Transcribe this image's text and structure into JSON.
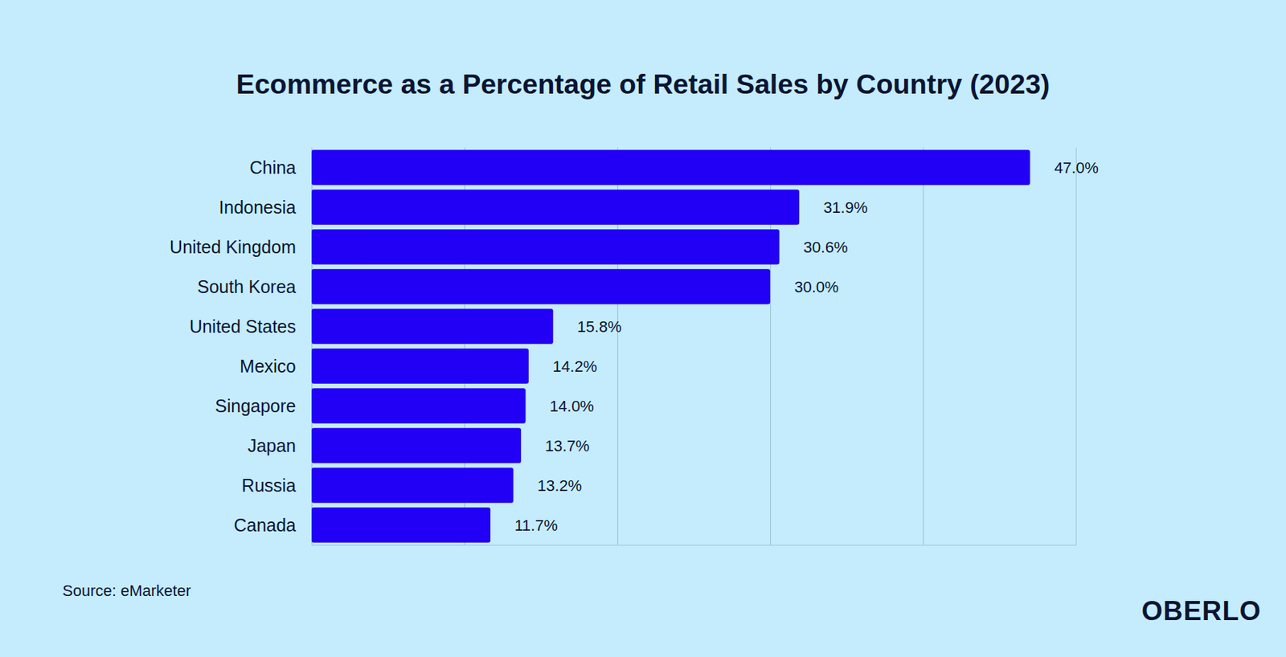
{
  "chart_data": {
    "type": "bar",
    "orientation": "horizontal",
    "title": "Ecommerce as a Percentage of Retail Sales by Country (2023)",
    "categories": [
      "China",
      "Indonesia",
      "United Kingdom",
      "South Korea",
      "United States",
      "Mexico",
      "Singapore",
      "Japan",
      "Russia",
      "Canada"
    ],
    "values": [
      47,
      31.9,
      30.6,
      30,
      15.8,
      14.2,
      14,
      13.7,
      13.2,
      11.7
    ],
    "value_labels": [
      "47.0%",
      "31.9%",
      "30.6%",
      "30.0%",
      "15.8%",
      "14.2%",
      "14.0%",
      "13.7%",
      "13.2%",
      "11.7%"
    ],
    "color": "#2200f5",
    "xlim": [
      0,
      50
    ],
    "xticks": [
      0,
      10,
      20,
      30,
      40
    ],
    "grid": true,
    "data_labels": true,
    "tick_labels": false,
    "source": "Source: eMarketer",
    "logo": "OBERLO"
  }
}
